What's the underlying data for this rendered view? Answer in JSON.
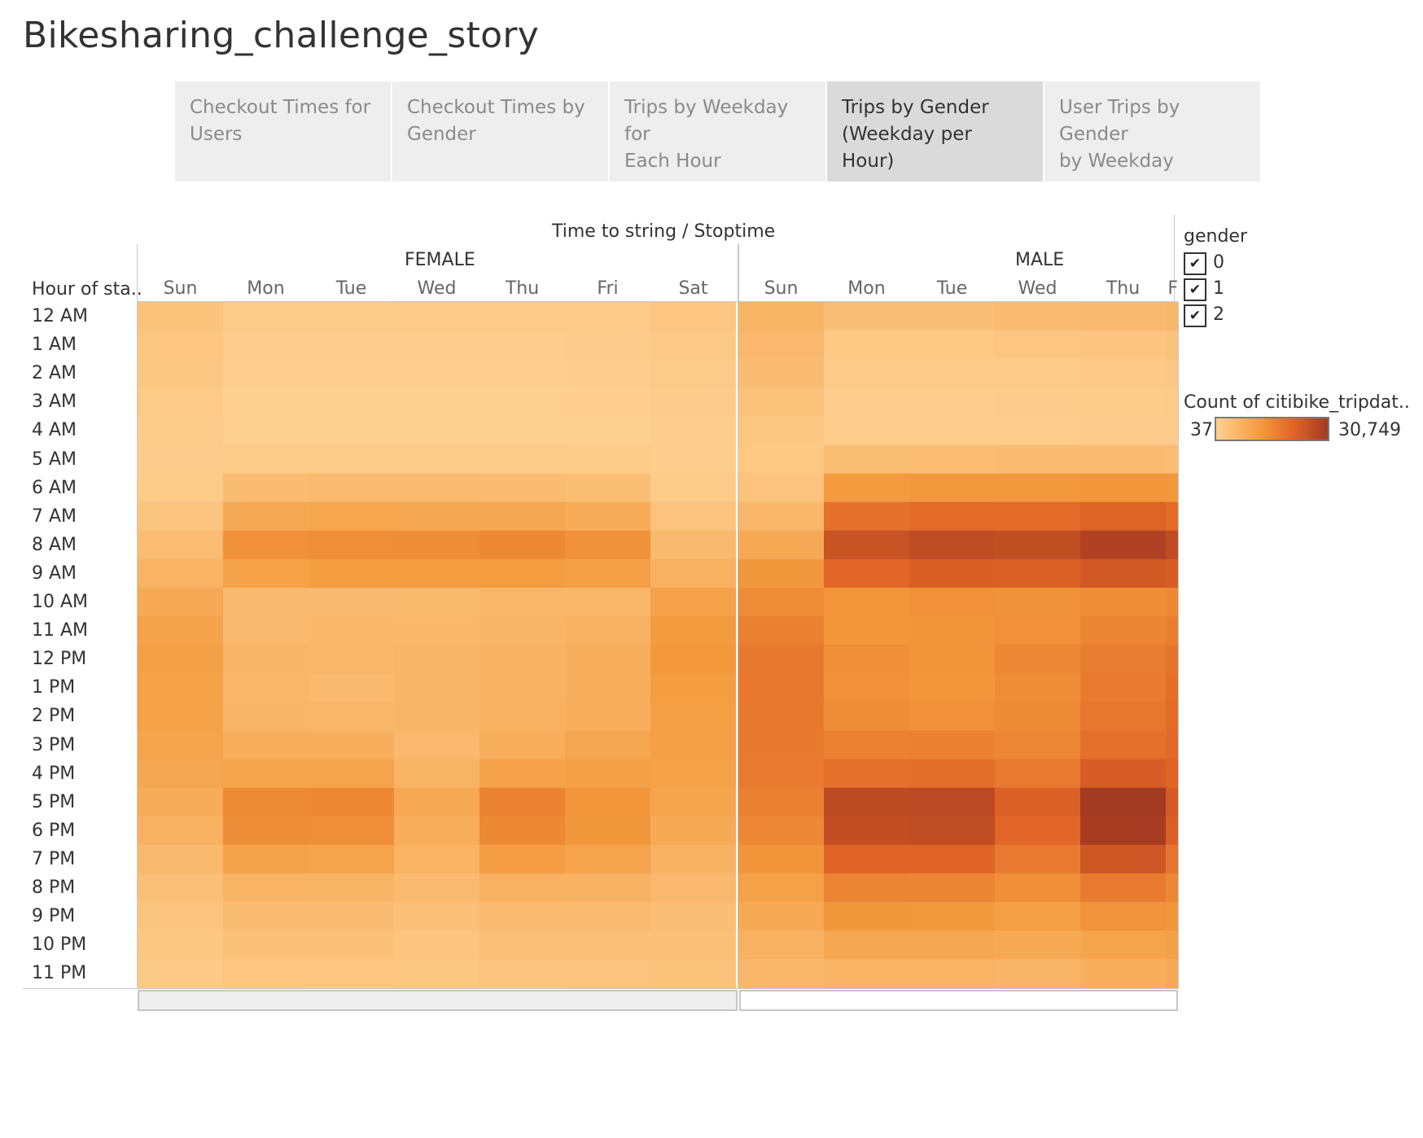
{
  "story_title": "Bikesharing_challenge_story",
  "tabs": [
    {
      "label_line1": "Checkout Times for",
      "label_line2": "Users",
      "active": false
    },
    {
      "label_line1": "Checkout Times by",
      "label_line2": "Gender",
      "active": false
    },
    {
      "label_line1": "Trips by Weekday for",
      "label_line2": "Each Hour",
      "active": false
    },
    {
      "label_line1": "Trips by Gender",
      "label_line2": "(Weekday per Hour)",
      "active": true
    },
    {
      "label_line1": "User Trips by Gender",
      "label_line2": "by Weekday",
      "active": false
    }
  ],
  "viz": {
    "column_header_title": "Time to string  /  Stoptime",
    "row_header": "Hour of sta..",
    "hours": [
      "12 AM",
      "1 AM",
      "2 AM",
      "3 AM",
      "4 AM",
      "5 AM",
      "6 AM",
      "7 AM",
      "8 AM",
      "9 AM",
      "10 AM",
      "11 AM",
      "12 PM",
      "1 PM",
      "2 PM",
      "3 PM",
      "4 PM",
      "5 PM",
      "6 PM",
      "7 PM",
      "8 PM",
      "9 PM",
      "10 PM",
      "11 PM"
    ],
    "female_label": "FEMALE",
    "male_label": "MALE",
    "female_days": [
      "Sun",
      "Mon",
      "Tue",
      "Wed",
      "Thu",
      "Fri",
      "Sat"
    ],
    "male_days": [
      "Sun",
      "Mon",
      "Tue",
      "Wed",
      "Thu",
      "F"
    ]
  },
  "gender_legend": {
    "title": "gender",
    "items": [
      {
        "label": "0",
        "checked": true
      },
      {
        "label": "1",
        "checked": true
      },
      {
        "label": "2",
        "checked": true
      }
    ],
    "check_glyph": "✔"
  },
  "color_legend": {
    "title": "Count of citibike_tripdat..",
    "min_label": "37",
    "max_label": "30,749",
    "colors": [
      "#fed193",
      "#f39a3d",
      "#e06426",
      "#a33a22"
    ]
  },
  "chart_data": {
    "type": "heatmap",
    "title": "Time to string / Stoptime",
    "ylabel": "Hour of sta..",
    "value_label": "Count of citibike_tripdat..",
    "range": [
      37,
      30749
    ],
    "rows": [
      "12 AM",
      "1 AM",
      "2 AM",
      "3 AM",
      "4 AM",
      "5 AM",
      "6 AM",
      "7 AM",
      "8 AM",
      "9 AM",
      "10 AM",
      "11 AM",
      "12 PM",
      "1 PM",
      "2 PM",
      "3 PM",
      "4 PM",
      "5 PM",
      "6 PM",
      "7 PM",
      "8 PM",
      "9 PM",
      "10 PM",
      "11 PM"
    ],
    "panels": [
      {
        "name": "FEMALE",
        "columns": [
          "Sun",
          "Mon",
          "Tue",
          "Wed",
          "Thu",
          "Fri",
          "Sat"
        ],
        "values": [
          [
            2800,
            1200,
            1200,
            1300,
            1300,
            1400,
            2100
          ],
          [
            2300,
            700,
            700,
            800,
            800,
            900,
            1600
          ],
          [
            1900,
            500,
            500,
            500,
            500,
            600,
            1200
          ],
          [
            1300,
            300,
            300,
            300,
            300,
            350,
            900
          ],
          [
            1000,
            300,
            300,
            300,
            300,
            300,
            700
          ],
          [
            900,
            1200,
            1200,
            1200,
            1200,
            1100,
            700
          ],
          [
            1100,
            4000,
            4200,
            4200,
            4000,
            3600,
            1100
          ],
          [
            2400,
            7500,
            8100,
            7900,
            7900,
            7000,
            2600
          ],
          [
            3800,
            12100,
            12600,
            12700,
            13700,
            11800,
            4500
          ],
          [
            5600,
            8800,
            9800,
            9800,
            9800,
            9100,
            6000
          ],
          [
            7300,
            4300,
            4500,
            4400,
            5000,
            5000,
            8900
          ],
          [
            8600,
            4500,
            4800,
            4800,
            5300,
            5800,
            10000
          ],
          [
            9200,
            5300,
            4800,
            5300,
            5800,
            6300,
            10500
          ],
          [
            9000,
            5000,
            4500,
            5200,
            5800,
            6400,
            9800
          ],
          [
            8800,
            5300,
            5000,
            5300,
            6000,
            6500,
            9400
          ],
          [
            8500,
            6500,
            6400,
            4600,
            6500,
            8000,
            9300
          ],
          [
            8000,
            8500,
            8500,
            5500,
            8700,
            9100,
            9000
          ],
          [
            7000,
            13300,
            13700,
            7500,
            14800,
            11000,
            8200
          ],
          [
            6000,
            12700,
            12600,
            6800,
            13700,
            10600,
            7300
          ],
          [
            4500,
            8600,
            8500,
            5700,
            9700,
            8400,
            5800
          ],
          [
            3300,
            5600,
            5500,
            4200,
            5900,
            5800,
            4600
          ],
          [
            2500,
            4000,
            4000,
            3000,
            4200,
            4200,
            3500
          ],
          [
            2000,
            3000,
            3000,
            2400,
            3300,
            3300,
            3200
          ],
          [
            1500,
            2200,
            2300,
            1900,
            2500,
            2700,
            2800
          ]
        ]
      },
      {
        "name": "MALE",
        "columns": [
          "Sun",
          "Mon",
          "Tue",
          "Wed",
          "Thu",
          "F"
        ],
        "values": [
          [
            5500,
            3400,
            3400,
            3900,
            4300,
            4800
          ],
          [
            4600,
            1800,
            1800,
            2100,
            2400,
            2800
          ],
          [
            3900,
            1300,
            1300,
            1400,
            1600,
            1900
          ],
          [
            2800,
            800,
            800,
            900,
            1000,
            1200
          ],
          [
            2000,
            800,
            800,
            800,
            900,
            1000
          ],
          [
            1800,
            3700,
            3800,
            3900,
            3900,
            3800
          ],
          [
            2700,
            10000,
            10400,
            10400,
            10900,
            10400
          ],
          [
            4800,
            18000,
            19200,
            19100,
            20800,
            19000
          ],
          [
            7500,
            24600,
            26000,
            25700,
            28800,
            26000
          ],
          [
            10600,
            20100,
            21800,
            21400,
            23200,
            22100
          ],
          [
            13200,
            11000,
            12000,
            11700,
            13000,
            13700
          ],
          [
            15200,
            11000,
            11500,
            12000,
            14000,
            15500
          ],
          [
            16500,
            12300,
            11500,
            13600,
            16000,
            17700
          ],
          [
            16800,
            12000,
            11000,
            13000,
            16200,
            18500
          ],
          [
            16600,
            12800,
            12100,
            13300,
            17000,
            19000
          ],
          [
            16600,
            14800,
            15000,
            13800,
            18300,
            19600
          ],
          [
            16200,
            18200,
            18400,
            16300,
            22200,
            20600
          ],
          [
            15000,
            26600,
            26800,
            21200,
            30749,
            22600
          ],
          [
            13600,
            25600,
            25800,
            20200,
            30300,
            21400
          ],
          [
            11300,
            20600,
            20600,
            16200,
            23600,
            17300
          ],
          [
            9000,
            14500,
            14300,
            12200,
            16100,
            13800
          ],
          [
            7300,
            10600,
            10400,
            9300,
            11600,
            11000
          ],
          [
            6000,
            7800,
            7800,
            7300,
            8500,
            9100
          ],
          [
            4800,
            5600,
            5600,
            5300,
            6400,
            7400
          ]
        ]
      }
    ]
  }
}
